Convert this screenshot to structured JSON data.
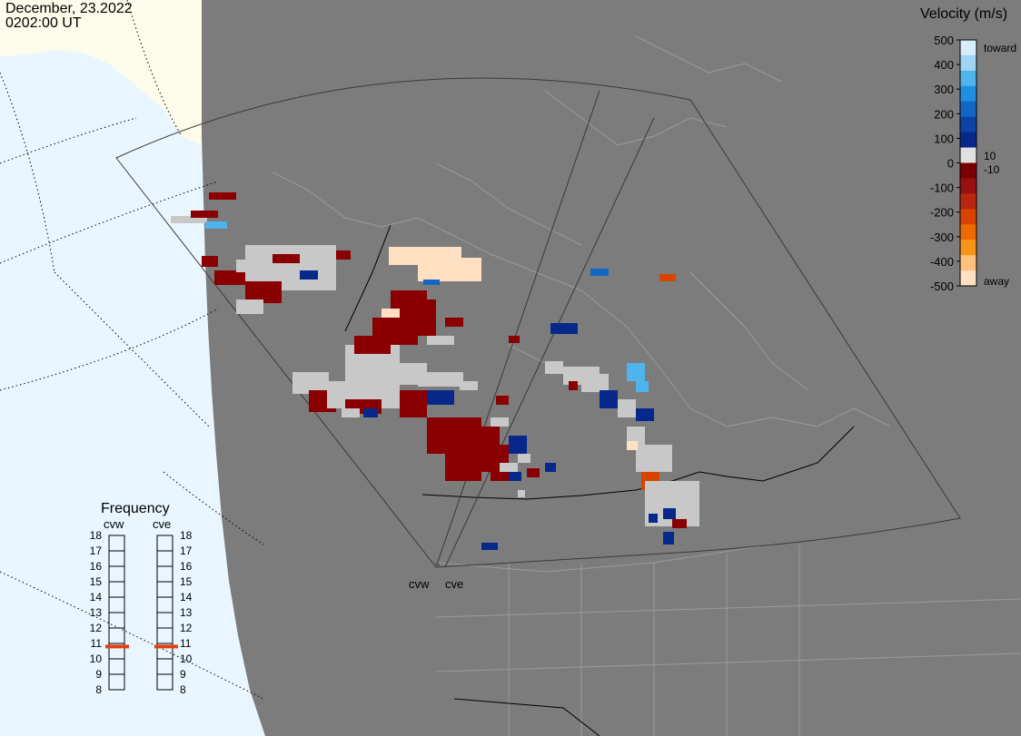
{
  "header": {
    "date": "December, 23.2022",
    "time": "0202:00 UT"
  },
  "colorbar": {
    "title": "Velocity (m/s)",
    "ticks": [
      "500",
      "400",
      "300",
      "200",
      "100",
      "0",
      "-100",
      "-200",
      "-300",
      "-400",
      "-500"
    ],
    "label_10": "10",
    "label_neg10": "-10",
    "label_toward": "toward",
    "label_away": "away",
    "colors": [
      "#d6eefc",
      "#9fd4f4",
      "#4fb3ec",
      "#1e8fe0",
      "#1466c4",
      "#0c44a6",
      "#06288a",
      "#e0e0e0",
      "#7a0000",
      "#9a1010",
      "#b82810",
      "#d84400",
      "#ee6a00",
      "#f89418",
      "#ffc07a",
      "#ffe0c2"
    ]
  },
  "frequency": {
    "title": "Frequency",
    "columns": [
      "cvw",
      "cve"
    ],
    "ticks": [
      "18",
      "17",
      "16",
      "15",
      "14",
      "13",
      "12",
      "11",
      "10",
      "9",
      "8"
    ],
    "cvw_mhz": 10.8,
    "cve_mhz": 10.8,
    "marker_color": "#e04010"
  },
  "radars": {
    "west_label": "cvw",
    "east_label": "cve"
  },
  "map_colors": {
    "ocean": "#eaf6ff",
    "land_dark": "#7c7c7c",
    "land_light": "#fdfcea",
    "boundary": "#9a9a9a",
    "ground_scatter": "#c8c8c8"
  }
}
